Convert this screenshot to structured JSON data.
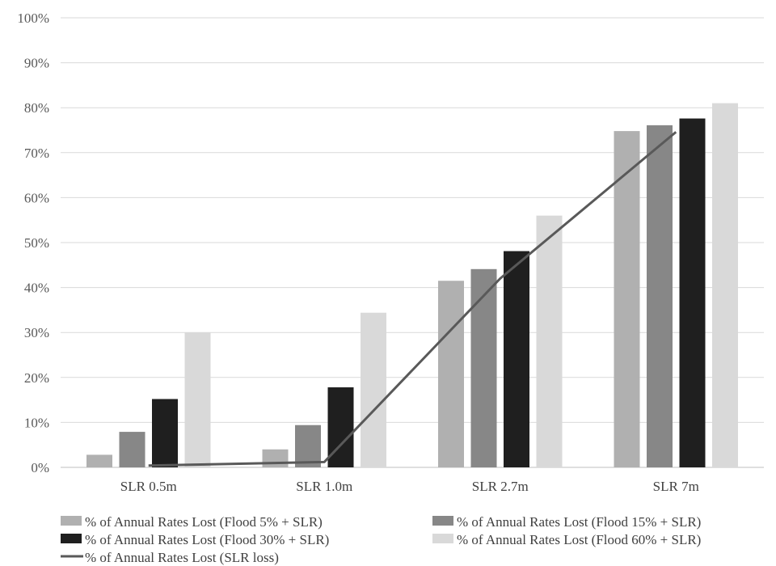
{
  "chart_data": {
    "type": "bar",
    "title": "",
    "xlabel": "",
    "ylabel": "",
    "categories": [
      "SLR 0.5m",
      "SLR 1.0m",
      "SLR 2.7m",
      "SLR 7m"
    ],
    "ylim": [
      0,
      100
    ],
    "yticks": [
      0,
      10,
      20,
      30,
      40,
      50,
      60,
      70,
      80,
      90,
      100
    ],
    "ytick_labels": [
      "0%",
      "10%",
      "20%",
      "30%",
      "40%",
      "50%",
      "60%",
      "70%",
      "80%",
      "90%",
      "100%"
    ],
    "y_unit": "%",
    "grid": true,
    "legend_position": "bottom",
    "series": [
      {
        "name": "% of Annual Rates Lost (Flood 5% + SLR)",
        "kind": "bar",
        "color": "#b0b0b0",
        "values": [
          2.8,
          4.0,
          41.5,
          74.8
        ]
      },
      {
        "name": "% of Annual Rates Lost (Flood 15% + SLR)",
        "kind": "bar",
        "color": "#878787",
        "values": [
          7.9,
          9.4,
          44.1,
          76.1
        ]
      },
      {
        "name": "% of Annual Rates Lost (Flood 30% + SLR)",
        "kind": "bar",
        "color": "#1f1f1f",
        "values": [
          15.2,
          17.8,
          48.1,
          77.6
        ]
      },
      {
        "name": "% of Annual Rates Lost (Flood 60% + SLR)",
        "kind": "bar",
        "color": "#d9d9d9",
        "values": [
          30.0,
          34.4,
          56.0,
          81.0
        ]
      },
      {
        "name": "% of Annual Rates Lost (SLR loss)",
        "kind": "line",
        "color": "#595959",
        "values": [
          0.4,
          1.2,
          42.0,
          74.6
        ]
      }
    ]
  }
}
